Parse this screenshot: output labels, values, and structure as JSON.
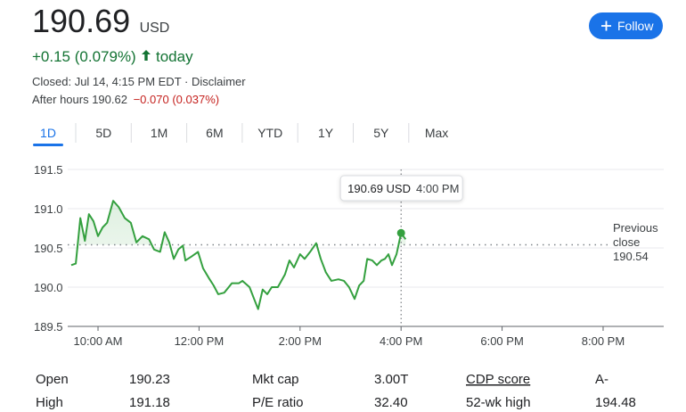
{
  "header": {
    "price": "190.69",
    "currency": "USD",
    "change": "+0.15 (0.079%)",
    "change_period": "today",
    "status": "Closed: Jul 14, 4:15 PM EDT · Disclaimer",
    "after_hours": "After hours 190.62",
    "after_hours_change": "−0.070 (0.037%)",
    "follow_button": "Follow"
  },
  "tabs": [
    "1D",
    "5D",
    "1M",
    "6M",
    "YTD",
    "1Y",
    "5Y",
    "Max"
  ],
  "selected_tab": 0,
  "chart_data": {
    "type": "line",
    "x": [
      9.47,
      9.56,
      9.65,
      9.74,
      9.82,
      9.91,
      10.0,
      10.09,
      10.18,
      10.3,
      10.41,
      10.53,
      10.65,
      10.76,
      10.88,
      11.01,
      11.11,
      11.23,
      11.32,
      11.41,
      11.5,
      11.59,
      11.68,
      11.73,
      11.85,
      11.98,
      12.08,
      12.2,
      12.29,
      12.38,
      12.5,
      12.65,
      12.79,
      12.86,
      13.0,
      13.09,
      13.17,
      13.26,
      13.35,
      13.44,
      13.56,
      13.7,
      13.79,
      13.88,
      14.0,
      14.09,
      14.2,
      14.32,
      14.41,
      14.51,
      14.62,
      14.76,
      14.87,
      14.97,
      15.08,
      15.17,
      15.26,
      15.33,
      15.43,
      15.52,
      15.61,
      15.68,
      15.75,
      15.82,
      15.91,
      16.0,
      16.09
    ],
    "series": [
      {
        "color": "#34a03f",
        "values": [
          190.28,
          190.3,
          190.88,
          190.59,
          190.93,
          190.84,
          190.65,
          190.76,
          190.82,
          191.1,
          191.02,
          190.88,
          190.82,
          190.57,
          190.65,
          190.61,
          190.48,
          190.45,
          190.7,
          190.57,
          190.36,
          190.48,
          190.53,
          190.34,
          190.39,
          190.45,
          190.24,
          190.11,
          190.02,
          189.91,
          189.93,
          190.05,
          190.05,
          190.08,
          190.0,
          189.85,
          189.72,
          189.97,
          189.91,
          190.0,
          190.0,
          190.16,
          190.34,
          190.25,
          190.42,
          190.36,
          190.45,
          190.56,
          190.36,
          190.19,
          190.08,
          190.1,
          190.08,
          190.0,
          189.85,
          190.02,
          190.08,
          190.36,
          190.34,
          190.28,
          190.34,
          190.36,
          190.42,
          190.28,
          190.42,
          190.69,
          190.61
        ]
      }
    ],
    "xlim": [
      9.4,
      21.2
    ],
    "xticks": [
      {
        "value": 10,
        "label": "10:00 AM"
      },
      {
        "value": 12,
        "label": "12:00 PM"
      },
      {
        "value": 14,
        "label": "2:00 PM"
      },
      {
        "value": 16,
        "label": "4:00 PM"
      },
      {
        "value": 18,
        "label": "6:00 PM"
      },
      {
        "value": 20,
        "label": "8:00 PM"
      }
    ],
    "ylim": [
      189.5,
      191.5
    ],
    "yticks": [
      191.5,
      {
        "value": 191,
        "label": "191.0"
      },
      190.5,
      {
        "value": 190,
        "label": "190.0"
      },
      189.5
    ],
    "grid": true,
    "reference_line": {
      "label": "Previous close",
      "value": 190.54
    },
    "tooltip": {
      "price": "190.69 USD",
      "time": "4:00 PM",
      "x": 16
    }
  },
  "stats": [
    [
      "Open",
      "190.23",
      "Mkt cap",
      "3.00T",
      "CDP score",
      "A-"
    ],
    [
      "High",
      "191.18",
      "P/E ratio",
      "32.40",
      "52-wk high",
      "194.48"
    ]
  ]
}
